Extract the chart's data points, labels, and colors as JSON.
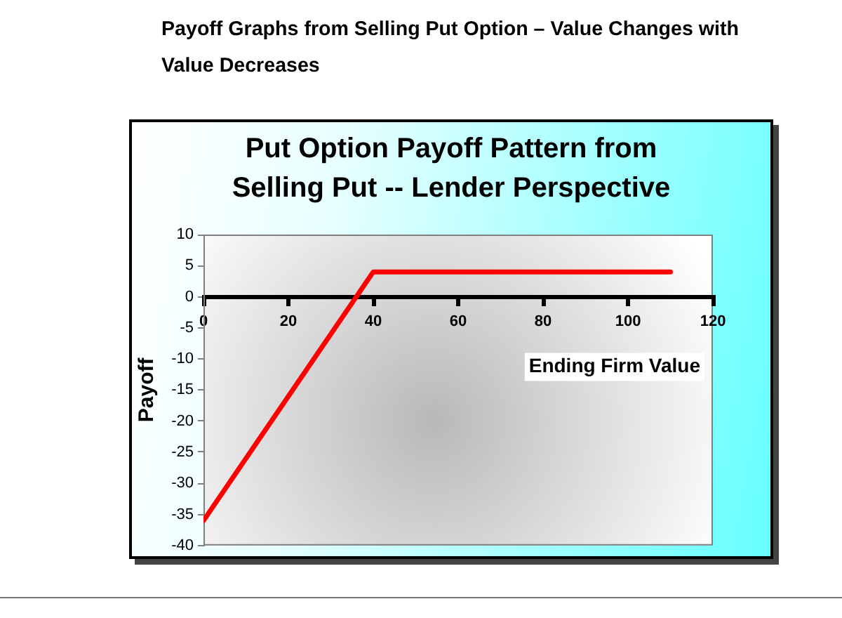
{
  "chart_data": {
    "type": "line",
    "title": "Put Option Payoff Pattern from Selling Put -- Lender Perspective",
    "xlabel": "Ending Firm Value",
    "ylabel": "Payoff",
    "annotations": [
      "Payoff Graphs from Selling Put Option – Value Changes with Value Decreases"
    ],
    "x": [
      0,
      40,
      110
    ],
    "values": [
      -36,
      4,
      4
    ],
    "color": "#ff0000",
    "xlim": [
      0,
      120
    ],
    "xticks": [
      0,
      20,
      40,
      60,
      80,
      100,
      120
    ],
    "ylim": [
      -40,
      10
    ],
    "yticks": [
      -40,
      -35,
      -30,
      -25,
      -20,
      -15,
      -10,
      -5,
      0,
      5,
      10
    ]
  }
}
